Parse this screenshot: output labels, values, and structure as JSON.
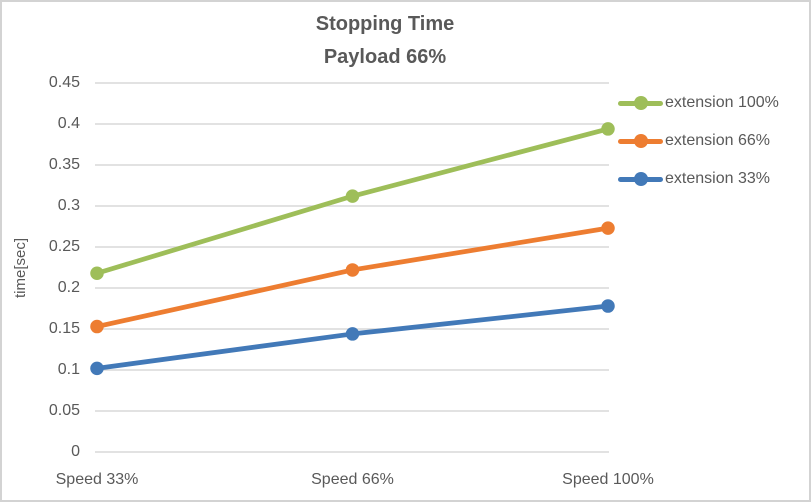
{
  "title": {
    "line1": "Stopping Time",
    "line2": "Payload 66%"
  },
  "colors": {
    "text": "#595959",
    "gridline": "#d9d9d9",
    "border": "#d3d3d3",
    "background": "#ffffff",
    "series_green": "#9ebe59",
    "series_orange": "#ed7d31",
    "series_blue": "#4279b8"
  },
  "chart_data": {
    "type": "line",
    "title": "Stopping Time",
    "subtitle": "Payload 66%",
    "categories": [
      "Speed 33%",
      "Speed 66%",
      "Speed 100%"
    ],
    "series": [
      {
        "name": "extension 100%",
        "color": "#9ebe59",
        "values": [
          0.218,
          0.312,
          0.394
        ]
      },
      {
        "name": "extension 66%",
        "color": "#ed7d31",
        "values": [
          0.153,
          0.222,
          0.273
        ]
      },
      {
        "name": "extension 33%",
        "color": "#4279b8",
        "values": [
          0.102,
          0.144,
          0.178
        ]
      }
    ],
    "xlabel": "",
    "ylabel": "time[sec]",
    "ylim": [
      0,
      0.45
    ],
    "ytick_step": 0.05,
    "ytick_labels": [
      "0",
      "0.05",
      "0.1",
      "0.15",
      "0.2",
      "0.25",
      "0.3",
      "0.35",
      "0.4",
      "0.45"
    ],
    "grid": true,
    "legend_position": "right",
    "marker": "circle"
  }
}
